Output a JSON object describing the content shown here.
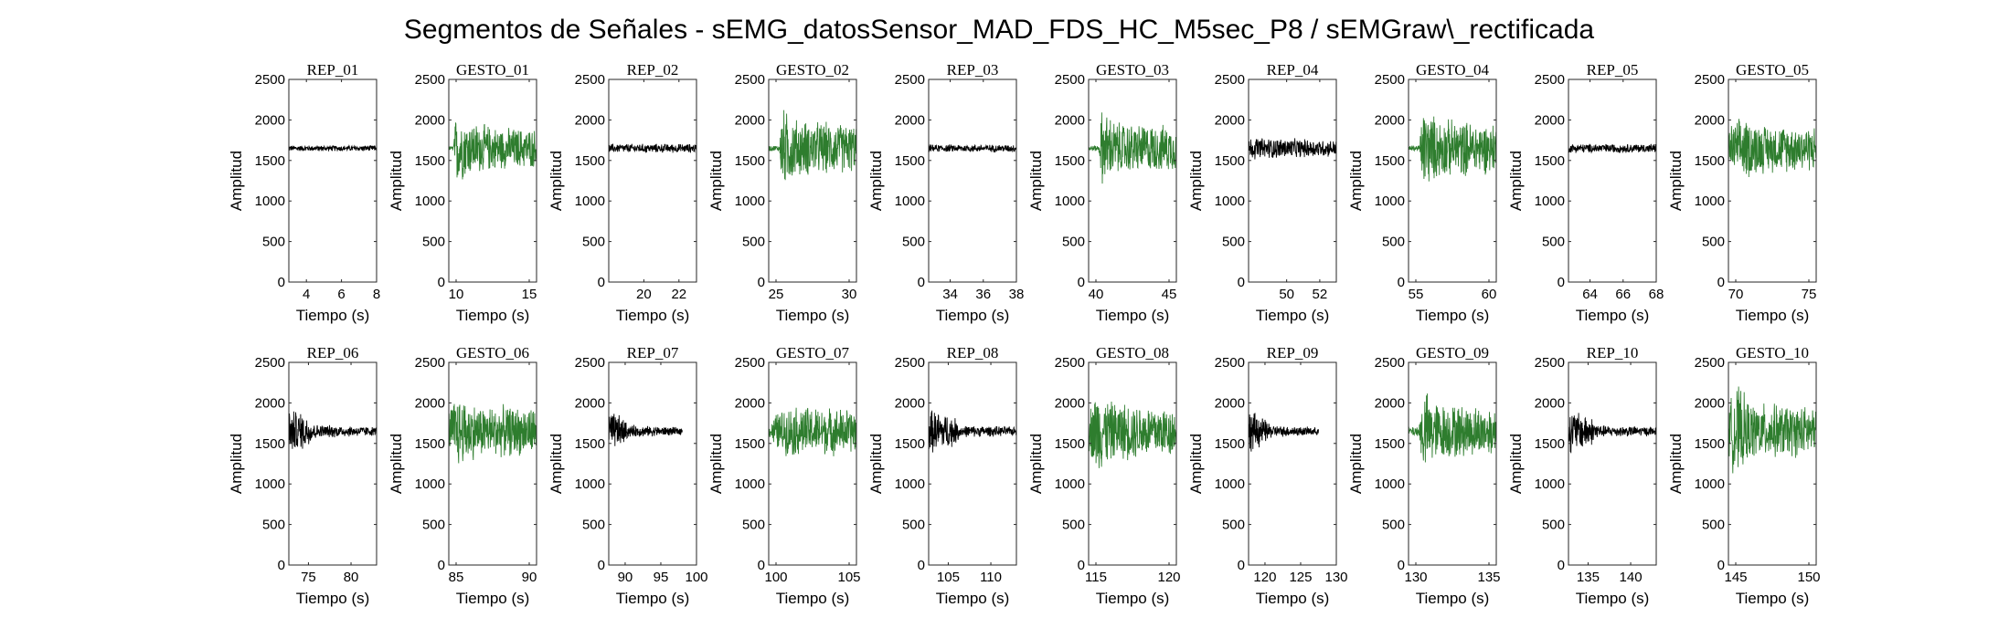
{
  "figure": {
    "title": "Segmentos de Señales - sEMG_datosSensor_MAD_FDS_HC_M5sec_P8 / sEMGraw\\_rectificada"
  },
  "colors": {
    "rep": "#000000",
    "gesto": "#2e7d2e",
    "axis": "#262626"
  },
  "chart_data": [
    {
      "type": "line",
      "title": "REP_01",
      "xlabel": "Tiempo (s)",
      "ylabel": "Amplitud",
      "xlim": [
        3,
        8
      ],
      "ylim": [
        0,
        2500
      ],
      "xticks": [
        4,
        6,
        8
      ],
      "yticks": [
        0,
        500,
        1000,
        1500,
        2000,
        2500
      ],
      "series": [
        {
          "name": "REP_01",
          "x_range": [
            3,
            8
          ],
          "baseline": 1650,
          "envelope": [
            [
              3,
              40
            ],
            [
              8,
              40
            ]
          ]
        }
      ]
    },
    {
      "type": "line",
      "title": "GESTO_01",
      "xlabel": "Tiempo (s)",
      "ylabel": "Amplitud",
      "xlim": [
        9.5,
        15.5
      ],
      "ylim": [
        0,
        2500
      ],
      "xticks": [
        10,
        15
      ],
      "yticks": [
        0,
        500,
        1000,
        1500,
        2000,
        2500
      ],
      "series": [
        {
          "name": "GESTO_01",
          "x_range": [
            9.5,
            15.5
          ],
          "baseline": 1650,
          "envelope": [
            [
              9.5,
              30
            ],
            [
              9.8,
              30
            ],
            [
              10,
              480
            ],
            [
              11,
              360
            ],
            [
              13,
              280
            ],
            [
              15.5,
              260
            ]
          ]
        }
      ]
    },
    {
      "type": "line",
      "title": "REP_02",
      "xlabel": "Tiempo (s)",
      "ylabel": "Amplitud",
      "xlim": [
        18,
        23
      ],
      "ylim": [
        0,
        2500
      ],
      "xticks": [
        20,
        22
      ],
      "yticks": [
        0,
        500,
        1000,
        1500,
        2000,
        2500
      ],
      "series": [
        {
          "name": "REP_02",
          "x_range": [
            18,
            23
          ],
          "baseline": 1650,
          "envelope": [
            [
              18,
              60
            ],
            [
              23,
              60
            ]
          ]
        }
      ]
    },
    {
      "type": "line",
      "title": "GESTO_02",
      "xlabel": "Tiempo (s)",
      "ylabel": "Amplitud",
      "xlim": [
        24.5,
        30.5
      ],
      "ylim": [
        0,
        2500
      ],
      "xticks": [
        25,
        30
      ],
      "yticks": [
        0,
        500,
        1000,
        1500,
        2000,
        2500
      ],
      "series": [
        {
          "name": "GESTO_02",
          "x_range": [
            24.5,
            30.5
          ],
          "baseline": 1650,
          "envelope": [
            [
              24.5,
              40
            ],
            [
              25.2,
              40
            ],
            [
              25.4,
              550
            ],
            [
              26.5,
              380
            ],
            [
              30.5,
              320
            ]
          ]
        }
      ]
    },
    {
      "type": "line",
      "title": "REP_03",
      "xlabel": "Tiempo (s)",
      "ylabel": "Amplitud",
      "xlim": [
        32.7,
        38
      ],
      "ylim": [
        0,
        2500
      ],
      "xticks": [
        34,
        36,
        38
      ],
      "yticks": [
        0,
        500,
        1000,
        1500,
        2000,
        2500
      ],
      "series": [
        {
          "name": "REP_03",
          "x_range": [
            32.7,
            38
          ],
          "baseline": 1650,
          "envelope": [
            [
              32.7,
              50
            ],
            [
              38,
              50
            ]
          ]
        }
      ]
    },
    {
      "type": "line",
      "title": "GESTO_03",
      "xlabel": "Tiempo (s)",
      "ylabel": "Amplitud",
      "xlim": [
        39.5,
        45.5
      ],
      "ylim": [
        0,
        2500
      ],
      "xticks": [
        40,
        45
      ],
      "yticks": [
        0,
        500,
        1000,
        1500,
        2000,
        2500
      ],
      "series": [
        {
          "name": "GESTO_03",
          "x_range": [
            39.5,
            45.5
          ],
          "baseline": 1650,
          "envelope": [
            [
              39.5,
              40
            ],
            [
              40.2,
              40
            ],
            [
              40.4,
              520
            ],
            [
              41.5,
              350
            ],
            [
              45.5,
              300
            ]
          ]
        }
      ]
    },
    {
      "type": "line",
      "title": "REP_04",
      "xlabel": "Tiempo (s)",
      "ylabel": "Amplitud",
      "xlim": [
        47.7,
        53
      ],
      "ylim": [
        0,
        2500
      ],
      "xticks": [
        50,
        52
      ],
      "yticks": [
        0,
        500,
        1000,
        1500,
        2000,
        2500
      ],
      "series": [
        {
          "name": "REP_04",
          "x_range": [
            47.7,
            53
          ],
          "baseline": 1650,
          "envelope": [
            [
              47.7,
              150
            ],
            [
              53,
              110
            ]
          ]
        }
      ]
    },
    {
      "type": "line",
      "title": "GESTO_04",
      "xlabel": "Tiempo (s)",
      "ylabel": "Amplitud",
      "xlim": [
        54.5,
        60.5
      ],
      "ylim": [
        0,
        2500
      ],
      "xticks": [
        55,
        60
      ],
      "yticks": [
        0,
        500,
        1000,
        1500,
        2000,
        2500
      ],
      "series": [
        {
          "name": "GESTO_04",
          "x_range": [
            54.5,
            60.5
          ],
          "baseline": 1650,
          "envelope": [
            [
              54.5,
              40
            ],
            [
              55.2,
              40
            ],
            [
              55.5,
              560
            ],
            [
              56.5,
              400
            ],
            [
              60.5,
              330
            ]
          ]
        }
      ]
    },
    {
      "type": "line",
      "title": "REP_05",
      "xlabel": "Tiempo (s)",
      "ylabel": "Amplitud",
      "xlim": [
        62.7,
        68
      ],
      "ylim": [
        0,
        2500
      ],
      "xticks": [
        64,
        66,
        68
      ],
      "yticks": [
        0,
        500,
        1000,
        1500,
        2000,
        2500
      ],
      "series": [
        {
          "name": "REP_05",
          "x_range": [
            62.7,
            68
          ],
          "baseline": 1650,
          "envelope": [
            [
              62.7,
              60
            ],
            [
              68,
              60
            ]
          ]
        }
      ]
    },
    {
      "type": "line",
      "title": "GESTO_05",
      "xlabel": "Tiempo (s)",
      "ylabel": "Amplitud",
      "xlim": [
        69.5,
        75.5
      ],
      "ylim": [
        0,
        2500
      ],
      "xticks": [
        70,
        75
      ],
      "yticks": [
        0,
        500,
        1000,
        1500,
        2000,
        2500
      ],
      "series": [
        {
          "name": "GESTO_05",
          "x_range": [
            69.5,
            75.5
          ],
          "baseline": 1650,
          "envelope": [
            [
              69.5,
              300
            ],
            [
              70.5,
              420
            ],
            [
              72,
              320
            ],
            [
              75.5,
              300
            ]
          ]
        }
      ]
    },
    {
      "type": "line",
      "title": "REP_06",
      "xlabel": "Tiempo (s)",
      "ylabel": "Amplitud",
      "xlim": [
        72.7,
        83
      ],
      "ylim": [
        0,
        2500
      ],
      "xticks": [
        75,
        80
      ],
      "yticks": [
        0,
        500,
        1000,
        1500,
        2000,
        2500
      ],
      "series": [
        {
          "name": "REP_06",
          "x_range": [
            72.7,
            83
          ],
          "baseline": 1650,
          "envelope": [
            [
              72.7,
              300
            ],
            [
              74.5,
              250
            ],
            [
              76,
              90
            ],
            [
              83,
              60
            ]
          ]
        }
      ]
    },
    {
      "type": "line",
      "title": "GESTO_06",
      "xlabel": "Tiempo (s)",
      "ylabel": "Amplitud",
      "xlim": [
        84.5,
        90.5
      ],
      "ylim": [
        0,
        2500
      ],
      "xticks": [
        85,
        90
      ],
      "yticks": [
        0,
        500,
        1000,
        1500,
        2000,
        2500
      ],
      "series": [
        {
          "name": "GESTO_06",
          "x_range": [
            84.5,
            90.5
          ],
          "baseline": 1650,
          "envelope": [
            [
              84.5,
              300
            ],
            [
              85,
              500
            ],
            [
              86.5,
              350
            ],
            [
              90.5,
              320
            ]
          ]
        }
      ]
    },
    {
      "type": "line",
      "title": "REP_07",
      "xlabel": "Tiempo (s)",
      "ylabel": "Amplitud",
      "xlim": [
        87.7,
        100
      ],
      "ylim": [
        0,
        2500
      ],
      "xticks": [
        90,
        95,
        100
      ],
      "yticks": [
        0,
        500,
        1000,
        1500,
        2000,
        2500
      ],
      "series": [
        {
          "name": "REP_07",
          "x_range": [
            87.7,
            98
          ],
          "baseline": 1650,
          "envelope": [
            [
              87.7,
              280
            ],
            [
              89.5,
              200
            ],
            [
              90.5,
              80
            ],
            [
              98,
              50
            ]
          ]
        }
      ]
    },
    {
      "type": "line",
      "title": "GESTO_07",
      "xlabel": "Tiempo (s)",
      "ylabel": "Amplitud",
      "xlim": [
        99.5,
        105.5
      ],
      "ylim": [
        0,
        2500
      ],
      "xticks": [
        100,
        105
      ],
      "yticks": [
        0,
        500,
        1000,
        1500,
        2000,
        2500
      ],
      "series": [
        {
          "name": "GESTO_07",
          "x_range": [
            99.5,
            105.5
          ],
          "baseline": 1650,
          "envelope": [
            [
              99.5,
              60
            ],
            [
              100,
              250
            ],
            [
              101,
              340
            ],
            [
              105.5,
              300
            ]
          ]
        }
      ]
    },
    {
      "type": "line",
      "title": "REP_08",
      "xlabel": "Tiempo (s)",
      "ylabel": "Amplitud",
      "xlim": [
        102.7,
        113
      ],
      "ylim": [
        0,
        2500
      ],
      "xticks": [
        105,
        110
      ],
      "yticks": [
        0,
        500,
        1000,
        1500,
        2000,
        2500
      ],
      "series": [
        {
          "name": "REP_08",
          "x_range": [
            102.7,
            113
          ],
          "baseline": 1650,
          "envelope": [
            [
              102.7,
              300
            ],
            [
              105.5,
              220
            ],
            [
              106.5,
              80
            ],
            [
              113,
              60
            ]
          ]
        }
      ]
    },
    {
      "type": "line",
      "title": "GESTO_08",
      "xlabel": "Tiempo (s)",
      "ylabel": "Amplitud",
      "xlim": [
        114.5,
        120.5
      ],
      "ylim": [
        0,
        2500
      ],
      "xticks": [
        115,
        120
      ],
      "yticks": [
        0,
        500,
        1000,
        1500,
        2000,
        2500
      ],
      "series": [
        {
          "name": "GESTO_08",
          "x_range": [
            114.5,
            120.5
          ],
          "baseline": 1650,
          "envelope": [
            [
              114.5,
              250
            ],
            [
              115,
              580
            ],
            [
              116,
              400
            ],
            [
              120.5,
              330
            ]
          ]
        }
      ]
    },
    {
      "type": "line",
      "title": "REP_09",
      "xlabel": "Tiempo (s)",
      "ylabel": "Amplitud",
      "xlim": [
        117.7,
        130
      ],
      "ylim": [
        0,
        2500
      ],
      "xticks": [
        120,
        125,
        130
      ],
      "yticks": [
        0,
        500,
        1000,
        1500,
        2000,
        2500
      ],
      "series": [
        {
          "name": "REP_09",
          "x_range": [
            117.7,
            127.5
          ],
          "baseline": 1650,
          "envelope": [
            [
              117.7,
              300
            ],
            [
              119.5,
              200
            ],
            [
              121,
              80
            ],
            [
              127.5,
              50
            ]
          ]
        }
      ]
    },
    {
      "type": "line",
      "title": "GESTO_09",
      "xlabel": "Tiempo (s)",
      "ylabel": "Amplitud",
      "xlim": [
        129.5,
        135.5
      ],
      "ylim": [
        0,
        2500
      ],
      "xticks": [
        130,
        135
      ],
      "yticks": [
        0,
        500,
        1000,
        1500,
        2000,
        2500
      ],
      "series": [
        {
          "name": "GESTO_09",
          "x_range": [
            129.5,
            135.5
          ],
          "baseline": 1650,
          "envelope": [
            [
              129.5,
              60
            ],
            [
              130.2,
              80
            ],
            [
              130.5,
              560
            ],
            [
              131.5,
              380
            ],
            [
              135.5,
              320
            ]
          ]
        }
      ]
    },
    {
      "type": "line",
      "title": "REP_10",
      "xlabel": "Tiempo (s)",
      "ylabel": "Amplitud",
      "xlim": [
        132.7,
        143
      ],
      "ylim": [
        0,
        2500
      ],
      "xticks": [
        135,
        140
      ],
      "yticks": [
        0,
        500,
        1000,
        1500,
        2000,
        2500
      ],
      "series": [
        {
          "name": "REP_10",
          "x_range": [
            132.7,
            143
          ],
          "baseline": 1650,
          "envelope": [
            [
              132.7,
              300
            ],
            [
              135,
              230
            ],
            [
              136.5,
              80
            ],
            [
              143,
              60
            ]
          ]
        }
      ]
    },
    {
      "type": "line",
      "title": "GESTO_10",
      "xlabel": "Tiempo (s)",
      "ylabel": "Amplitud",
      "xlim": [
        144.5,
        150.5
      ],
      "ylim": [
        0,
        2500
      ],
      "xticks": [
        145,
        150
      ],
      "yticks": [
        0,
        500,
        1000,
        1500,
        2000,
        2500
      ],
      "series": [
        {
          "name": "GESTO_10",
          "x_range": [
            144.5,
            150.5
          ],
          "baseline": 1650,
          "envelope": [
            [
              144.5,
              350
            ],
            [
              145,
              650
            ],
            [
              146,
              380
            ],
            [
              150.5,
              330
            ]
          ]
        }
      ]
    }
  ]
}
